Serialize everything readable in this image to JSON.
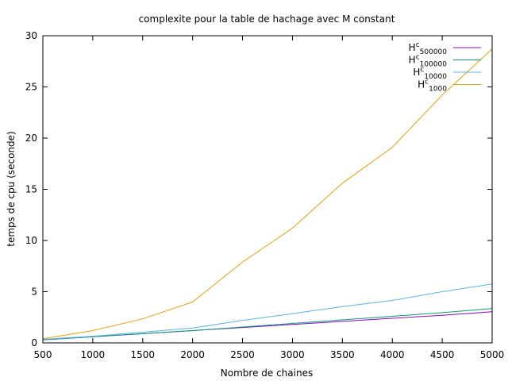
{
  "chart_data": {
    "type": "line",
    "title": "complexite pour la table de hachage avec M constant",
    "xlabel": "Nombre de chaines",
    "ylabel": "temps de cpu (seconde)",
    "xlim": [
      500,
      5000
    ],
    "ylim": [
      0,
      30
    ],
    "xticks": [
      500,
      1000,
      1500,
      2000,
      2500,
      3000,
      3500,
      4000,
      4500,
      5000
    ],
    "yticks": [
      0,
      5,
      10,
      15,
      20,
      25,
      30
    ],
    "grid": false,
    "legend_position": "top-right",
    "x": [
      500,
      1000,
      1500,
      2000,
      2500,
      3000,
      3500,
      4000,
      4500,
      5000
    ],
    "series": [
      {
        "name": "H",
        "sup": "c",
        "sub": "500000",
        "color": "#9400d3",
        "values": [
          0.3,
          0.6,
          0.9,
          1.2,
          1.5,
          1.8,
          2.1,
          2.4,
          2.7,
          3.05
        ]
      },
      {
        "name": "H",
        "sup": "c",
        "sub": "100000",
        "color": "#009e73",
        "values": [
          0.3,
          0.6,
          0.9,
          1.2,
          1.55,
          1.9,
          2.25,
          2.6,
          2.95,
          3.35
        ]
      },
      {
        "name": "H",
        "sup": "c",
        "sub": "10000",
        "color": "#56b4e9",
        "values": [
          0.35,
          0.65,
          1.05,
          1.45,
          2.2,
          2.85,
          3.55,
          4.15,
          5.0,
          5.75
        ]
      },
      {
        "name": "H",
        "sup": "c",
        "sub": "1000",
        "color": "#e69f00",
        "values": [
          0.4,
          1.2,
          2.35,
          4.0,
          7.9,
          11.2,
          15.6,
          19.1,
          24.2,
          28.7
        ]
      }
    ]
  }
}
